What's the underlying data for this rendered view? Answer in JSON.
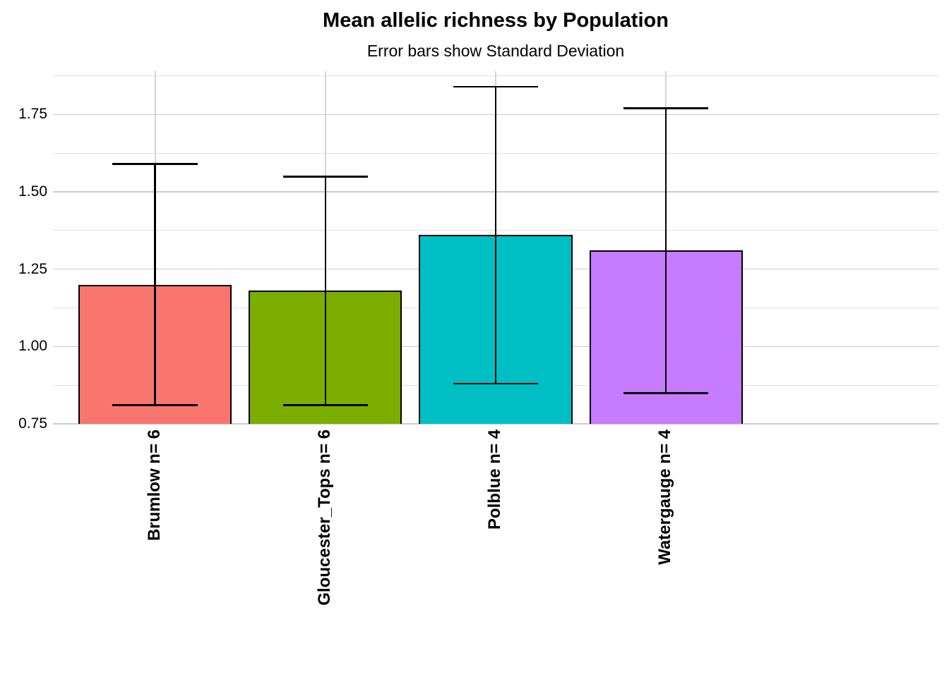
{
  "chart_data": {
    "type": "bar",
    "title": "Mean allelic richness by Population",
    "subtitle": "Error bars show Standard Deviation",
    "categories": [
      "Brumlow n= 6",
      "Gloucester_Tops n= 6",
      "Polblue n= 4",
      "Watergauge n= 4"
    ],
    "series": [
      {
        "name": "mean allelic richness",
        "values": [
          1.2,
          1.18,
          1.36,
          1.31
        ]
      }
    ],
    "error_sd": [
      0.39,
      0.37,
      0.48,
      0.46
    ],
    "error_bar_upper": [
      1.59,
      1.55,
      1.84,
      1.77
    ],
    "error_bar_lower": [
      0.81,
      0.81,
      0.88,
      0.85
    ],
    "bar_colors": [
      "#F8766D",
      "#7CAE00",
      "#00BFC4",
      "#C77CFF"
    ],
    "bar_border_color": "#000000",
    "error_bar_color": "#000000",
    "xlabel": "",
    "ylabel": "",
    "ylim": [
      0.75,
      1.89
    ],
    "yticks": [
      0.75,
      1.0,
      1.25,
      1.5,
      1.75
    ],
    "ytick_labels": [
      "0.75",
      "1.00",
      "1.25",
      "1.50",
      "1.75"
    ],
    "yminor": [
      0.875,
      1.125,
      1.375,
      1.625,
      1.875
    ],
    "grid": true,
    "grid_major_color": "#cbcbcb",
    "grid_minor_color": "#e0e0e0",
    "legend": false,
    "background": "#ffffff"
  }
}
